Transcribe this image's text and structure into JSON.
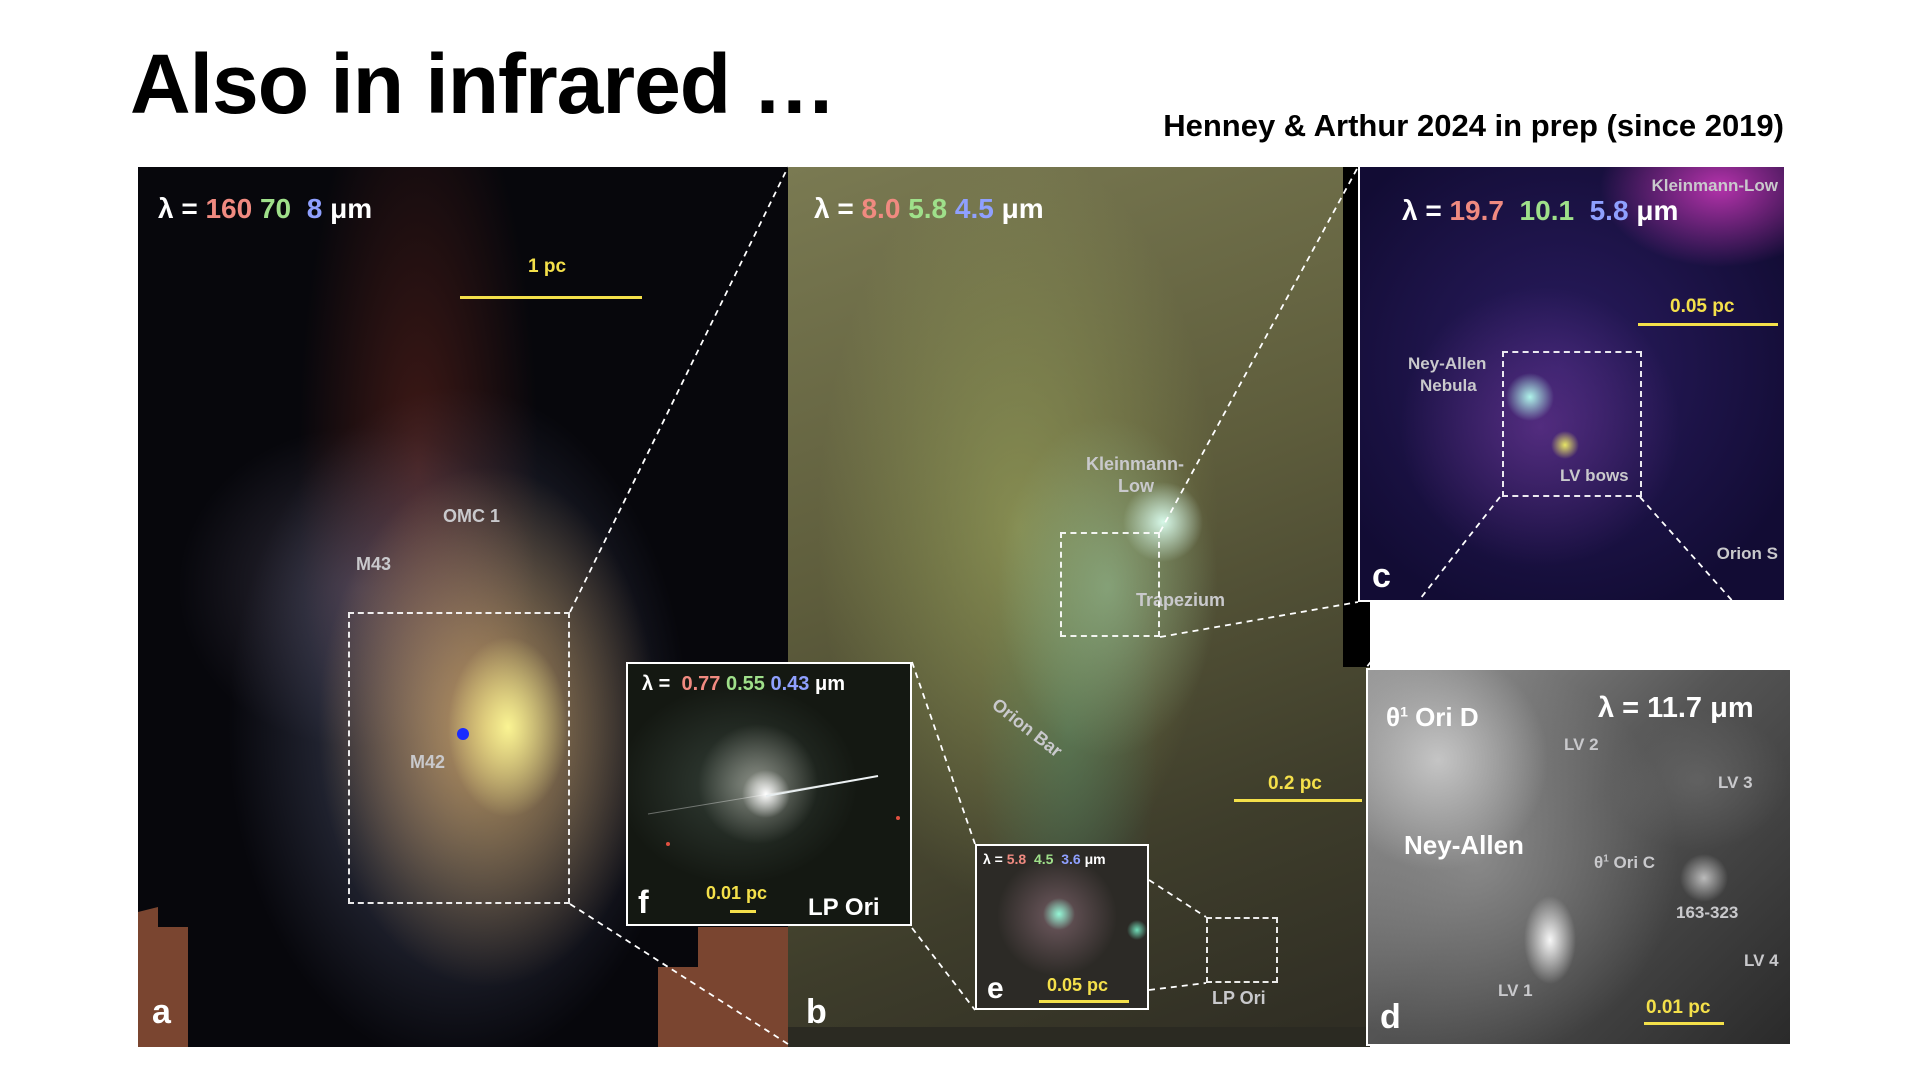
{
  "title": "Also in infrared …",
  "citation": "Henney & Arthur 2024 in prep (since 2019)",
  "panels": {
    "a": {
      "letter": "a",
      "lambda_prefix": "λ =",
      "w1": "160",
      "w2": "70",
      "w3": "8",
      "unit": "μm",
      "scale": "1 pc",
      "labels": {
        "omc1": "OMC 1",
        "m43": "M43",
        "m42": "M42"
      }
    },
    "b": {
      "letter": "b",
      "lambda_prefix": "λ =",
      "w1": "8.0",
      "w2": "5.8",
      "w3": "4.5",
      "unit": "μm",
      "scale": "0.2 pc",
      "labels": {
        "kl1": "Kleinmann-",
        "kl2": "Low",
        "trapezium": "Trapezium",
        "orion_bar": "Orion Bar",
        "lp_ori": "LP Ori"
      }
    },
    "c": {
      "letter": "c",
      "lambda_prefix": "λ =",
      "w1": "19.7",
      "w2": "10.1",
      "w3": "5.8",
      "unit": "μm",
      "scale": "0.05 pc",
      "labels": {
        "kl": "Kleinmann-Low",
        "ney1": "Ney-Allen",
        "ney2": "Nebula",
        "lv_bows": "LV bows",
        "orion_s": "Orion S"
      }
    },
    "d": {
      "letter": "d",
      "lambda": "λ = 11.7 μm",
      "scale": "0.01 pc",
      "labels": {
        "theta_d_pre": "θ",
        "theta_d_sup": "1",
        "theta_d_post": " Ori D",
        "ney_allen": "Ney-Allen",
        "theta_c_pre": "θ",
        "theta_c_sup": "1",
        "theta_c_post": " Ori C",
        "lv1": "LV 1",
        "lv2": "LV 2",
        "lv3": "LV 3",
        "lv4": "LV 4",
        "p163": "163-323"
      }
    },
    "e": {
      "letter": "e",
      "lambda_prefix": "λ =",
      "w1": "5.8",
      "w2": "4.5",
      "w3": "3.6",
      "unit": "μm",
      "scale": "0.05 pc"
    },
    "f": {
      "letter": "f",
      "lambda_prefix": "λ =",
      "w1": "0.77",
      "w2": "0.55",
      "w3": "0.43",
      "unit": "μm",
      "scale": "0.01 pc",
      "name": "LP Ori"
    }
  },
  "colors": {
    "scale_bar": "#f4e04a",
    "red_band": "#f08a80",
    "green_band": "#9fe08a",
    "blue_band": "#8fa0ff"
  }
}
